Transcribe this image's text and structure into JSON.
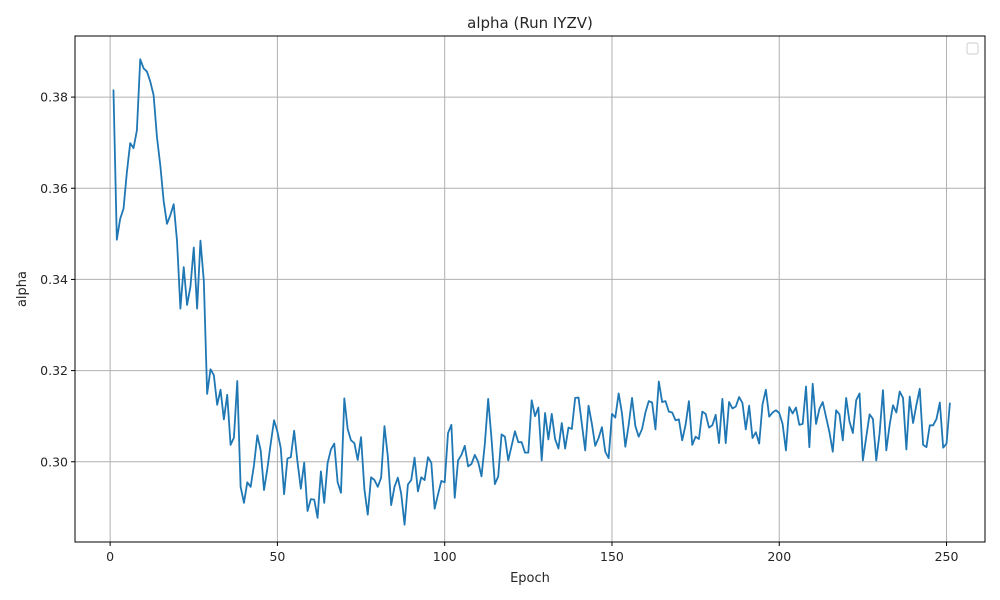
{
  "chart_data": {
    "type": "line",
    "title": "alpha (Run IYZV)",
    "xlabel": "Epoch",
    "ylabel": "alpha",
    "xlim": [
      -10.5,
      261.5
    ],
    "ylim": [
      0.2824,
      0.3934
    ],
    "x_ticks": [
      0,
      50,
      100,
      150,
      200,
      250
    ],
    "y_ticks": [
      0.3,
      0.32,
      0.34,
      0.36,
      0.38
    ],
    "y_tick_labels": [
      "0.30",
      "0.32",
      "0.34",
      "0.36",
      "0.38"
    ],
    "grid": true,
    "legend": "top-right (empty)",
    "colors": {
      "line": "#1f77b4",
      "grid": "#b0b0b0",
      "frame": "#000000"
    },
    "series": [
      {
        "x_start": 1,
        "x_step": 1,
        "values": [
          0.3815,
          0.3487,
          0.3533,
          0.3555,
          0.3635,
          0.3699,
          0.3688,
          0.3727,
          0.3883,
          0.3863,
          0.3856,
          0.3834,
          0.3804,
          0.3712,
          0.365,
          0.3572,
          0.3522,
          0.3541,
          0.3565,
          0.3484,
          0.3336,
          0.3427,
          0.3344,
          0.3384,
          0.347,
          0.3336,
          0.3485,
          0.3397,
          0.3149,
          0.3203,
          0.319,
          0.3125,
          0.3158,
          0.3093,
          0.3147,
          0.3037,
          0.3053,
          0.3177,
          0.2945,
          0.291,
          0.2955,
          0.2945,
          0.2993,
          0.3058,
          0.3025,
          0.2938,
          0.2985,
          0.304,
          0.3091,
          0.3066,
          0.303,
          0.2929,
          0.3007,
          0.301,
          0.3068,
          0.3,
          0.2941,
          0.2998,
          0.2892,
          0.2918,
          0.2917,
          0.2877,
          0.2979,
          0.291,
          0.2997,
          0.3027,
          0.304,
          0.2955,
          0.2932,
          0.3139,
          0.3072,
          0.3047,
          0.3041,
          0.3004,
          0.3054,
          0.294,
          0.2884,
          0.2966,
          0.296,
          0.2945,
          0.2965,
          0.3078,
          0.3012,
          0.2905,
          0.2945,
          0.2965,
          0.293,
          0.2862,
          0.295,
          0.296,
          0.3009,
          0.2935,
          0.2966,
          0.296,
          0.301,
          0.2998,
          0.2897,
          0.2928,
          0.2958,
          0.2955,
          0.3063,
          0.3081,
          0.2921,
          0.3003,
          0.3015,
          0.3035,
          0.299,
          0.2995,
          0.3015,
          0.3,
          0.2968,
          0.3039,
          0.3138,
          0.305,
          0.2951,
          0.2968,
          0.306,
          0.3055,
          0.3003,
          0.3035,
          0.3067,
          0.3043,
          0.3043,
          0.302,
          0.302,
          0.3135,
          0.31,
          0.3119,
          0.3003,
          0.3107,
          0.3049,
          0.3105,
          0.305,
          0.3029,
          0.3085,
          0.3029,
          0.3075,
          0.3072,
          0.314,
          0.3141,
          0.3083,
          0.3025,
          0.3123,
          0.3083,
          0.3035,
          0.3052,
          0.3076,
          0.3022,
          0.3008,
          0.3105,
          0.3097,
          0.315,
          0.3106,
          0.3033,
          0.3081,
          0.314,
          0.3078,
          0.3055,
          0.3072,
          0.3108,
          0.3133,
          0.313,
          0.3071,
          0.3176,
          0.3131,
          0.3133,
          0.311,
          0.3108,
          0.3091,
          0.3093,
          0.3047,
          0.3081,
          0.3133,
          0.3037,
          0.3055,
          0.305,
          0.311,
          0.3105,
          0.3075,
          0.308,
          0.3103,
          0.3041,
          0.3138,
          0.3041,
          0.3131,
          0.3117,
          0.3121,
          0.3142,
          0.3129,
          0.3071,
          0.3123,
          0.3052,
          0.3065,
          0.304,
          0.3126,
          0.3158,
          0.3099,
          0.3108,
          0.3113,
          0.3107,
          0.3083,
          0.3025,
          0.312,
          0.3106,
          0.3119,
          0.3081,
          0.3083,
          0.3165,
          0.3032,
          0.3171,
          0.3083,
          0.3116,
          0.3131,
          0.3098,
          0.3065,
          0.3022,
          0.3113,
          0.3104,
          0.3047,
          0.314,
          0.3088,
          0.3063,
          0.3135,
          0.315,
          0.3003,
          0.3054,
          0.3104,
          0.3094,
          0.3003,
          0.3063,
          0.3157,
          0.3025,
          0.3081,
          0.3124,
          0.3108,
          0.3154,
          0.314,
          0.3027,
          0.3143,
          0.3085,
          0.3125,
          0.316,
          0.3037,
          0.3032,
          0.308,
          0.308,
          0.3094,
          0.313,
          0.3031,
          0.304,
          0.3128
        ]
      }
    ]
  }
}
